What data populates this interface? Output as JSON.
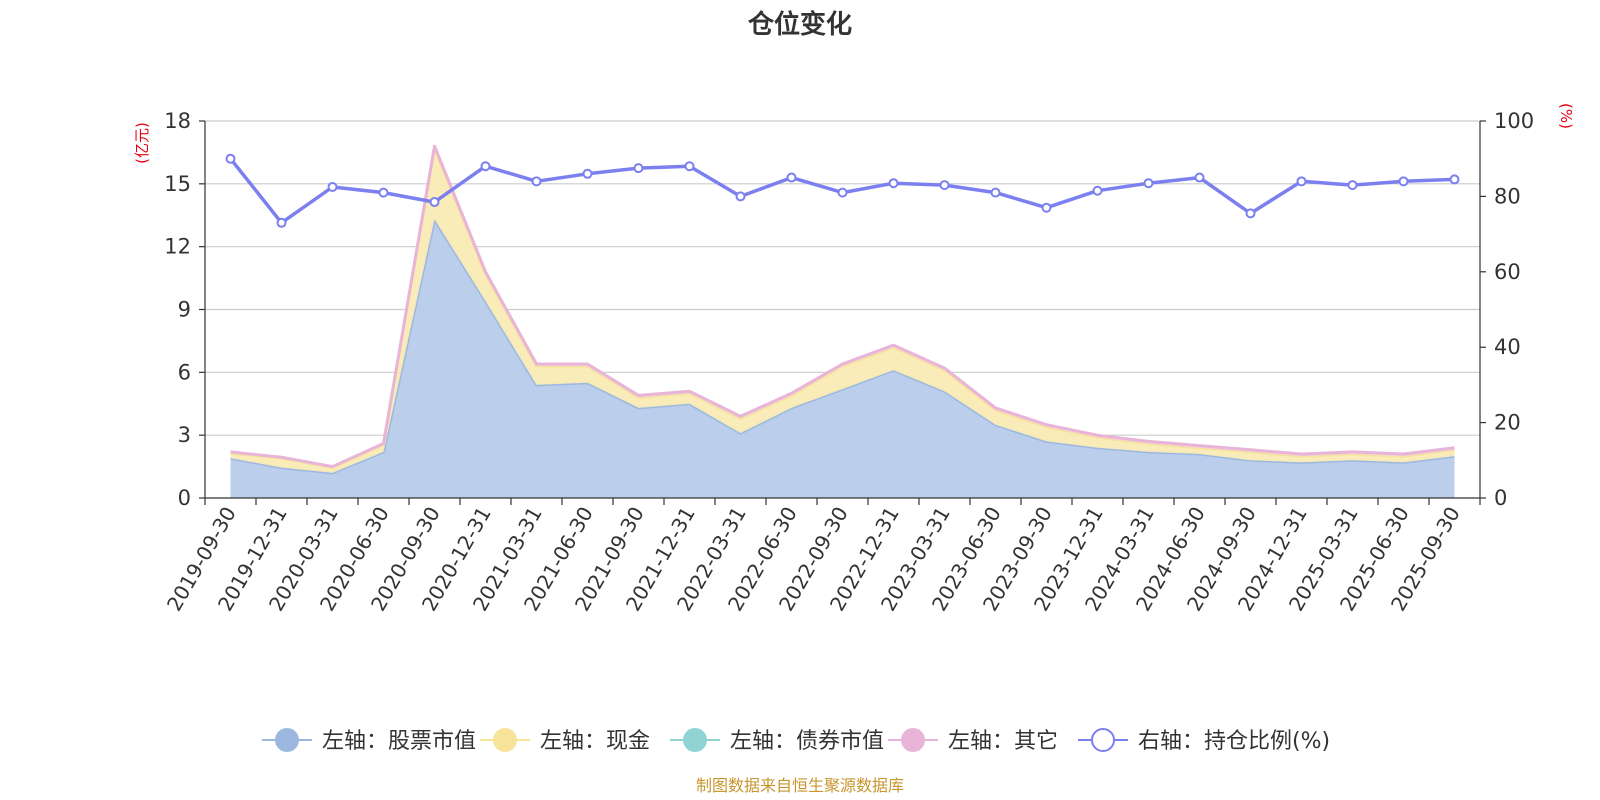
{
  "chart_data": {
    "type": "area",
    "title": "仓位变化",
    "left_axis_unit": "(亿元)",
    "right_axis_unit": "(%)",
    "left_ylim": [
      0,
      18
    ],
    "left_ticks": [
      "0",
      "3",
      "6",
      "9",
      "12",
      "15",
      "18"
    ],
    "right_ylim": [
      0,
      100
    ],
    "right_ticks": [
      "0",
      "20",
      "40",
      "60",
      "80",
      "100"
    ],
    "categories": [
      "2019-09-30",
      "2019-12-31",
      "2020-03-31",
      "2020-06-30",
      "2020-09-30",
      "2020-12-31",
      "2021-03-31",
      "2021-06-30",
      "2021-09-30",
      "2021-12-31",
      "2022-03-31",
      "2022-06-30",
      "2022-09-30",
      "2022-12-31",
      "2023-03-31",
      "2023-06-30",
      "2023-09-30",
      "2023-12-31",
      "2024-03-31",
      "2024-06-30",
      "2024-09-30",
      "2024-12-31",
      "2025-03-31",
      "2025-06-30",
      "2025-09-30"
    ],
    "series": [
      {
        "name": "左轴：股票市值",
        "axis": "left",
        "stack": true,
        "color": "#9db8e0",
        "fill": "#b7cceb",
        "values": [
          1.9,
          1.45,
          1.2,
          2.2,
          13.3,
          9.4,
          5.4,
          5.5,
          4.3,
          4.5,
          3.1,
          4.3,
          5.2,
          6.1,
          5.1,
          3.5,
          2.7,
          2.4,
          2.2,
          2.1,
          1.8,
          1.7,
          1.8,
          1.7,
          2.0
        ]
      },
      {
        "name": "左轴：现金",
        "axis": "left",
        "stack": true,
        "color": "#f7e39a",
        "fill": "#f9ebb5",
        "values": [
          0.25,
          0.45,
          0.25,
          0.35,
          3.4,
          1.3,
          0.9,
          0.8,
          0.5,
          0.5,
          0.7,
          0.6,
          1.1,
          1.1,
          1.0,
          0.7,
          0.7,
          0.5,
          0.4,
          0.3,
          0.4,
          0.3,
          0.3,
          0.3,
          0.3
        ]
      },
      {
        "name": "左轴：债券市值",
        "axis": "left",
        "stack": true,
        "color": "#8fd3d3",
        "fill": "#b2e2e2",
        "values": [
          0,
          0,
          0,
          0,
          0,
          0,
          0,
          0,
          0,
          0,
          0,
          0,
          0,
          0,
          0,
          0,
          0,
          0,
          0,
          0,
          0,
          0,
          0,
          0,
          0
        ]
      },
      {
        "name": "左轴：其它",
        "axis": "left",
        "stack": true,
        "color": "#e8b4d8",
        "fill": "#f0cde5",
        "values": [
          0.05,
          0.05,
          0.05,
          0.05,
          0.1,
          0.1,
          0.1,
          0.1,
          0.1,
          0.1,
          0.1,
          0.1,
          0.1,
          0.1,
          0.1,
          0.1,
          0.1,
          0.1,
          0.1,
          0.1,
          0.1,
          0.1,
          0.1,
          0.1,
          0.1
        ]
      },
      {
        "name": "右轴：持仓比例(%)",
        "axis": "right",
        "stack": false,
        "color": "#7b7ff0",
        "values": [
          90,
          73,
          82.5,
          81,
          78.5,
          88,
          84,
          86,
          87.5,
          88,
          80,
          85,
          81,
          83.5,
          83,
          81,
          77,
          81.5,
          83.5,
          85,
          75.5,
          84,
          83,
          84,
          84.5
        ]
      }
    ],
    "source_note": "制图数据来自恒生聚源数据库"
  }
}
